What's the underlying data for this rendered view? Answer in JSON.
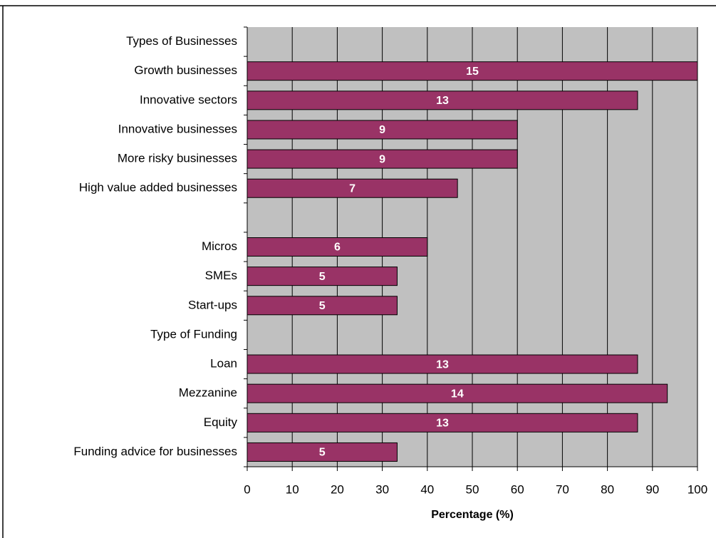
{
  "chart_data": {
    "type": "barh",
    "categories": [
      "Types of Businesses",
      "Growth businesses",
      "Innovative sectors",
      "Innovative businesses",
      "More risky businesses",
      "High value added businesses",
      null,
      "Micros",
      "SMEs",
      "Start-ups",
      "Type of Funding",
      "Loan",
      "Mezzanine",
      "Equity",
      "Funding advice for businesses"
    ],
    "values": [
      null,
      100,
      86.7,
      60,
      60,
      46.7,
      null,
      40,
      33.3,
      33.3,
      null,
      86.7,
      93.3,
      86.7,
      33.3
    ],
    "counts": [
      null,
      15,
      13,
      9,
      9,
      7,
      null,
      6,
      5,
      5,
      null,
      13,
      14,
      13,
      5
    ],
    "color": "#993366",
    "xlim": [
      0,
      100
    ],
    "xticks": [
      0,
      10,
      20,
      30,
      40,
      50,
      60,
      70,
      80,
      90,
      100
    ],
    "x_label": "Percentage (%)",
    "grid": true
  }
}
